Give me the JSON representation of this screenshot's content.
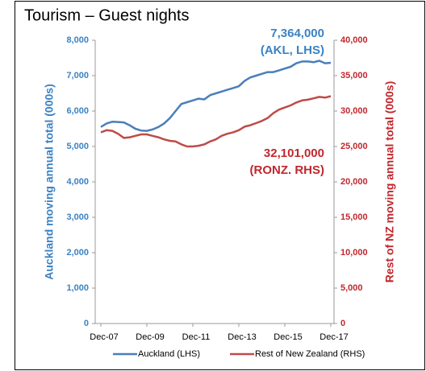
{
  "chart_data": {
    "type": "line",
    "title": "Tourism – Guest nights",
    "y_label": "Auckland moving annual total (000s)",
    "y2_label": "Rest of NZ moving annual total (000s)",
    "annotations": [
      "7,364,000",
      "(AKL, LHS)",
      "32,101,000",
      "(RONZ. RHS)"
    ],
    "categories": [
      "Dec-07",
      null,
      null,
      null,
      null,
      null,
      null,
      null,
      "Dec-09",
      null,
      null,
      null,
      null,
      null,
      null,
      null,
      "Dec-11",
      null,
      null,
      null,
      null,
      null,
      null,
      null,
      "Dec-13",
      null,
      null,
      null,
      null,
      null,
      null,
      null,
      "Dec-15",
      null,
      null,
      null,
      null,
      null,
      null,
      null,
      "Dec-17"
    ],
    "ylim": [
      0,
      8000
    ],
    "yticks": [
      0,
      {
        "value": 1000,
        "label": "1,000"
      },
      {
        "value": 2000,
        "label": "2,000"
      },
      {
        "value": 3000,
        "label": "3,000"
      },
      {
        "value": 4000,
        "label": "4,000"
      },
      {
        "value": 5000,
        "label": "5,000"
      },
      {
        "value": 6000,
        "label": "6,000"
      },
      {
        "value": 7000,
        "label": "7,000"
      },
      {
        "value": 8000,
        "label": "8,000"
      }
    ],
    "y2lim": [
      0,
      40000
    ],
    "y2ticks": [
      0,
      {
        "value": 5000,
        "label": "5,000"
      },
      {
        "value": 10000,
        "label": "10,000"
      },
      {
        "value": 15000,
        "label": "15,000"
      },
      {
        "value": 20000,
        "label": "20,000"
      },
      {
        "value": 25000,
        "label": "25,000"
      },
      {
        "value": 30000,
        "label": "30,000"
      },
      {
        "value": 35000,
        "label": "35,000"
      },
      {
        "value": 40000,
        "label": "40,000"
      }
    ],
    "series": [
      {
        "name": "Auckland (LHS)",
        "color": "#4a7ebb",
        "axis": "y",
        "values": [
          5550,
          5650,
          5700,
          5690,
          5680,
          5600,
          5500,
          5450,
          5440,
          5480,
          5550,
          5650,
          5800,
          6000,
          6200,
          6250,
          6300,
          6350,
          6330,
          6450,
          6500,
          6550,
          6600,
          6650,
          6700,
          6850,
          6950,
          7000,
          7050,
          7100,
          7100,
          7150,
          7200,
          7250,
          7350,
          7400,
          7400,
          7380,
          7420,
          7350,
          7364
        ]
      },
      {
        "name": "Rest of New Zealand (RHS)",
        "color": "#be4b48",
        "axis": "y2",
        "values": [
          27000,
          27300,
          27200,
          26800,
          26200,
          26300,
          26500,
          26700,
          26700,
          26500,
          26300,
          26000,
          25800,
          25700,
          25300,
          25000,
          25000,
          25100,
          25300,
          25700,
          26000,
          26500,
          26800,
          27000,
          27300,
          27800,
          28000,
          28300,
          28600,
          29000,
          29700,
          30200,
          30500,
          30800,
          31200,
          31500,
          31600,
          31800,
          32000,
          31900,
          32101
        ]
      }
    ]
  }
}
